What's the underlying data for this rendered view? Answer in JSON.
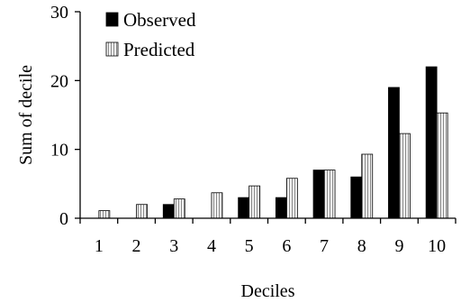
{
  "chart_data": {
    "type": "bar",
    "title": "",
    "xlabel": "Deciles",
    "ylabel": "Sum of decile",
    "ylim": [
      0,
      30
    ],
    "yticks": [
      0,
      10,
      20,
      30
    ],
    "categories": [
      "1",
      "2",
      "3",
      "4",
      "5",
      "6",
      "7",
      "8",
      "9",
      "10"
    ],
    "series": [
      {
        "name": "Observed",
        "values": [
          0,
          0,
          2,
          0,
          3,
          3,
          7,
          6,
          19,
          22
        ]
      },
      {
        "name": "Predicted",
        "values": [
          1.1,
          2.0,
          2.8,
          3.7,
          4.7,
          5.8,
          7.0,
          9.3,
          12.3,
          15.3
        ]
      }
    ],
    "grid": false,
    "legend_position": "top-left"
  }
}
